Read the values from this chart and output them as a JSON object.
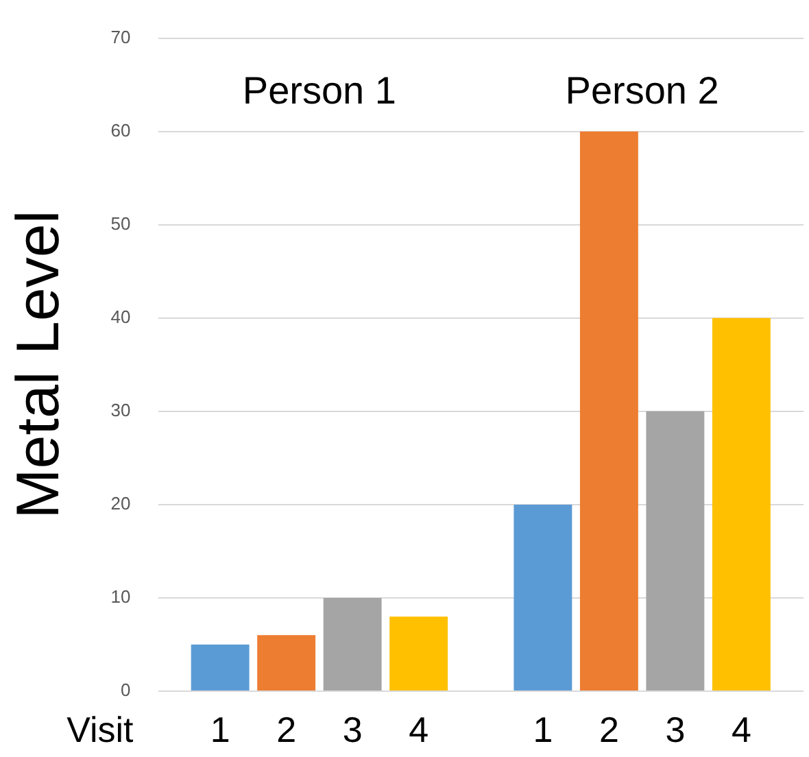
{
  "chart_data": {
    "type": "bar",
    "ylabel": "Metal Level",
    "xlabel": "Visit",
    "categories": [
      "Person 1",
      "Person 2"
    ],
    "series": [
      {
        "name": "1",
        "color": "#5b9bd5",
        "values": [
          5,
          20
        ]
      },
      {
        "name": "2",
        "color": "#ed7d31",
        "values": [
          6,
          60
        ]
      },
      {
        "name": "3",
        "color": "#a5a5a5",
        "values": [
          10,
          30
        ]
      },
      {
        "name": "4",
        "color": "#ffc000",
        "values": [
          8,
          40
        ]
      }
    ],
    "ylim": [
      0,
      70
    ],
    "yticks": [
      0,
      10,
      20,
      30,
      40,
      50,
      60,
      70
    ],
    "grid": "y"
  }
}
